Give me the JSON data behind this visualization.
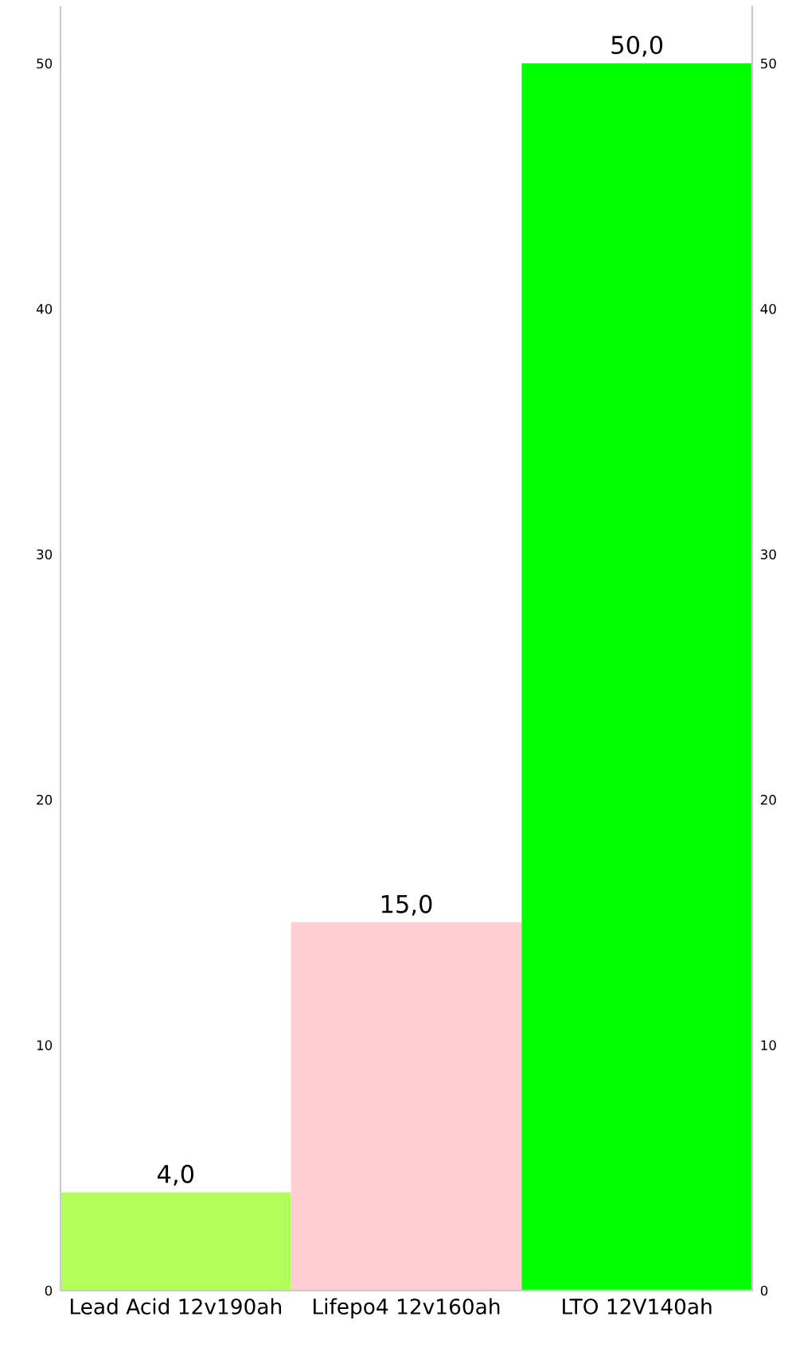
{
  "chart_data": {
    "type": "bar",
    "categories": [
      "Lead Acid 12v190ah",
      "Lifepo4 12v160ah",
      "LTO 12V140ah"
    ],
    "values": [
      4.0,
      15.0,
      50.0
    ],
    "colors": [
      "#b2ff59",
      "#ffcdd2",
      "#00ff00"
    ],
    "value_labels": [
      "4,0",
      "15,0",
      "50,0"
    ],
    "ylim": [
      0,
      52.3
    ],
    "yticks": [
      0,
      10,
      20,
      30,
      40,
      50
    ],
    "y2lim": [
      0,
      52.3
    ],
    "y2ticks": [
      0,
      10,
      20,
      30,
      40,
      50
    ],
    "grid": false,
    "legend": false
  }
}
